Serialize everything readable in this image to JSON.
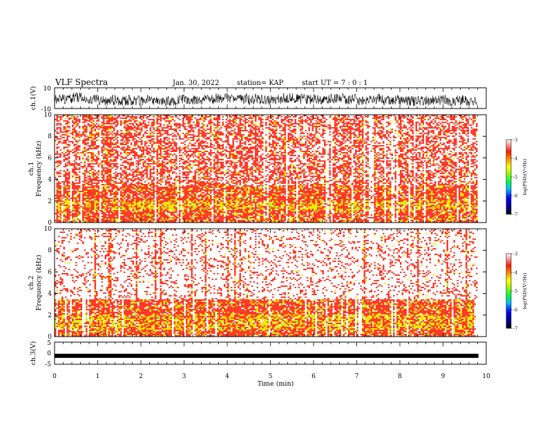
{
  "header": {
    "title": "VLF Spectra",
    "date": "Jan. 30, 2022",
    "station": "station= KAP",
    "start": "start  UT =  7 : 0  : 1"
  },
  "colors": {
    "spectrum_low": "#ffffff",
    "spectrum_mid": "#ff3a2a",
    "spectrum_high": "#ffff00",
    "waveform": "#000000"
  },
  "chart_data": [
    {
      "type": "line",
      "panel": "ch1-waveform",
      "ylabel": "ch.1(V)",
      "ylim": [
        -10,
        10
      ],
      "yticks": [
        "10",
        "-10"
      ],
      "xlim": [
        0,
        10
      ],
      "approx_range_V": [
        -8,
        8
      ]
    },
    {
      "type": "heatmap",
      "panel": "ch1-spectrogram",
      "ylabel": "ch.1\nFrequency (kHz)",
      "ylabel_lines": [
        "ch.1",
        "Frequency  (kHz)"
      ],
      "ylim": [
        0,
        10
      ],
      "yticks": [
        "0",
        "2",
        "4",
        "6",
        "8",
        "10"
      ],
      "xlim": [
        0,
        10
      ],
      "data_end_min": 9.82,
      "band_profile": [
        {
          "f_kHz": [
            0,
            0.5
          ],
          "level": "high"
        },
        {
          "f_kHz": [
            0.5,
            1.2
          ],
          "level": "high"
        },
        {
          "f_kHz": [
            1.2,
            2.0
          ],
          "level": "peak"
        },
        {
          "f_kHz": [
            2.0,
            3.4
          ],
          "level": "high"
        },
        {
          "f_kHz": [
            3.4,
            10
          ],
          "level": "medium"
        }
      ],
      "colorbar": {
        "label": "log(PSD)(V²/Hz)",
        "range": [
          -7,
          -3
        ],
        "ticks": [
          "-3",
          "-4",
          "-5",
          "-6",
          "-7"
        ]
      }
    },
    {
      "type": "heatmap",
      "panel": "ch2-spectrogram",
      "ylabel_lines": [
        "ch.2",
        "Frequency  (kHz)"
      ],
      "ylim": [
        0,
        10
      ],
      "yticks": [
        "0",
        "2",
        "4",
        "6",
        "8",
        "10"
      ],
      "xlim": [
        0,
        10
      ],
      "data_end_min": 9.82,
      "band_profile": [
        {
          "f_kHz": [
            0,
            0.6
          ],
          "level": "high"
        },
        {
          "f_kHz": [
            0.6,
            2.0
          ],
          "level": "peak"
        },
        {
          "f_kHz": [
            2.0,
            3.4
          ],
          "level": "high"
        },
        {
          "f_kHz": [
            3.4,
            10
          ],
          "level": "low"
        }
      ],
      "colorbar": {
        "label": "log(PSD)(V²/Hz)",
        "range": [
          -7,
          -3
        ],
        "ticks": [
          "-3",
          "-4",
          "-5",
          "-6",
          "-7"
        ]
      }
    },
    {
      "type": "line",
      "panel": "ch3-waveform",
      "ylabel": "ch.3(V)",
      "ylim": [
        -5,
        5
      ],
      "yticks": [
        "5",
        "0",
        "-5"
      ],
      "xlim": [
        0,
        10
      ],
      "approx_level_V": -1.2
    }
  ],
  "xaxis": {
    "label": "Time  (min)",
    "ticks": [
      "0",
      "1",
      "2",
      "3",
      "4",
      "5",
      "6",
      "7",
      "8",
      "9",
      "10"
    ]
  }
}
